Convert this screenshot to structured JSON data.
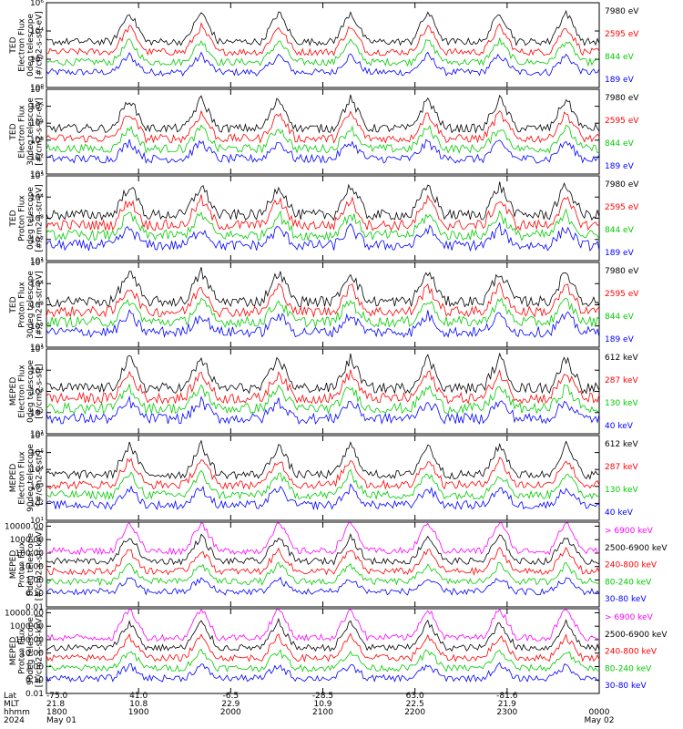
{
  "chart_data": {
    "type": "line",
    "x_axis": {
      "row_labels": [
        "Lat",
        "MLT",
        "hhmm",
        "2024"
      ],
      "ticks": [
        {
          "lat": "-75.0",
          "mlt": "21.8",
          "hhmm": "1800",
          "date": "May 01"
        },
        {
          "lat": "41.0",
          "mlt": "10.8",
          "hhmm": "1900",
          "date": ""
        },
        {
          "lat": "-6.5",
          "mlt": "22.9",
          "hhmm": "2000",
          "date": ""
        },
        {
          "lat": "-28.5",
          "mlt": "10.9",
          "hhmm": "2100",
          "date": ""
        },
        {
          "lat": "63.0",
          "mlt": "22.5",
          "hhmm": "2200",
          "date": ""
        },
        {
          "lat": "-81.6",
          "mlt": "21.9",
          "hhmm": "2300",
          "date": ""
        },
        {
          "lat": "",
          "mlt": "",
          "hhmm": "0000",
          "date": "May 02"
        }
      ]
    },
    "panels": [
      {
        "ylabel": [
          "TED",
          "Electron Flux",
          "0deg telescope",
          "[#/cm2-s-str-eV]"
        ],
        "y_ticks": [
          {
            "e": 0,
            "t": "10⁰"
          },
          {
            "e": 2,
            "t": "10²"
          },
          {
            "e": 4,
            "t": "10⁴"
          },
          {
            "e": 6,
            "t": "10⁶"
          }
        ],
        "ylim_log": [
          0,
          6
        ],
        "legend": [
          "7980 eV",
          "2595 eV",
          "844 eV",
          "189 eV"
        ],
        "colors": [
          "#000000",
          "#ff0000",
          "#00cc00",
          "#0000ff"
        ]
      },
      {
        "ylabel": [
          "TED",
          "Electron Flux",
          "30deg telescope",
          "[#/cm2-s-str-eV]"
        ],
        "y_ticks": [
          {
            "e": 1,
            "t": "10¹"
          },
          {
            "e": 2,
            "t": "10²"
          },
          {
            "e": 3,
            "t": "10³"
          },
          {
            "e": 4,
            "t": "10⁴"
          },
          {
            "e": 5,
            "t": "10⁵"
          },
          {
            "e": 6,
            "t": "10⁶"
          }
        ],
        "ylim_log": [
          1,
          6
        ],
        "legend": [
          "7980 eV",
          "2595 eV",
          "844 eV",
          "189 eV"
        ],
        "colors": [
          "#000000",
          "#ff0000",
          "#00cc00",
          "#0000ff"
        ]
      },
      {
        "ylabel": [
          "TED",
          "Proton Flux",
          "0deg telescope",
          "[#/cm2-s-str-eV]"
        ],
        "y_ticks": [
          {
            "e": 1,
            "t": "10¹"
          },
          {
            "e": 2,
            "t": "10²"
          },
          {
            "e": 3,
            "t": "10³"
          },
          {
            "e": 4,
            "t": "10⁴"
          },
          {
            "e": 5,
            "t": "10⁵"
          }
        ],
        "ylim_log": [
          1,
          5
        ],
        "legend": [
          "7980 eV",
          "2595 eV",
          "844 eV",
          "189 eV"
        ],
        "colors": [
          "#000000",
          "#ff0000",
          "#00cc00",
          "#0000ff"
        ]
      },
      {
        "ylabel": [
          "TED",
          "Proton Flux",
          "30deg telescope",
          "[#/cm2-s-str-eV]"
        ],
        "y_ticks": [
          {
            "e": 1,
            "t": "10¹"
          },
          {
            "e": 2,
            "t": "10²"
          },
          {
            "e": 3,
            "t": "10³"
          },
          {
            "e": 4,
            "t": "10⁴"
          },
          {
            "e": 5,
            "t": "10⁵"
          }
        ],
        "ylim_log": [
          1,
          5
        ],
        "legend": [
          "7980 eV",
          "2595 eV",
          "844 eV",
          "189 eV"
        ],
        "colors": [
          "#000000",
          "#ff0000",
          "#00cc00",
          "#0000ff"
        ]
      },
      {
        "ylabel": [
          "MEPED",
          "Electron Flux",
          "0deg telescope",
          "[#/cm2-s-str]"
        ],
        "y_ticks": [
          {
            "e": 1,
            "t": "10¹"
          },
          {
            "e": 2,
            "t": "10²"
          },
          {
            "e": 3,
            "t": "10³"
          },
          {
            "e": 4,
            "t": "10⁴"
          },
          {
            "e": 5,
            "t": "10⁵"
          }
        ],
        "ylim_log": [
          1,
          5
        ],
        "legend": [
          "612 keV",
          "287 keV",
          "130 keV",
          "40 keV"
        ],
        "colors": [
          "#000000",
          "#ff0000",
          "#00cc00",
          "#0000ff"
        ]
      },
      {
        "ylabel": [
          "MEPED",
          "Electron Flux",
          "90deg telescope",
          "[#/cm2-s-str]"
        ],
        "y_ticks": [
          {
            "e": 1,
            "t": "10¹"
          },
          {
            "e": 2,
            "t": "10²"
          },
          {
            "e": 3,
            "t": "10³"
          },
          {
            "e": 4,
            "t": "10⁴"
          },
          {
            "e": 5,
            "t": "10⁵"
          },
          {
            "e": 6,
            "t": "10⁶"
          }
        ],
        "ylim_log": [
          1,
          6
        ],
        "legend": [
          "612 keV",
          "287 keV",
          "130 keV",
          "40 keV"
        ],
        "colors": [
          "#000000",
          "#ff0000",
          "#00cc00",
          "#0000ff"
        ]
      },
      {
        "ylabel": [
          "MEPED",
          "Proton Flux",
          "0deg telescope",
          "[#/cm2-s-str-keV]"
        ],
        "y_ticks": [
          {
            "e": -2,
            "t": "0.01"
          },
          {
            "e": -1,
            "t": "0.10"
          },
          {
            "e": 0,
            "t": "1.00"
          },
          {
            "e": 1,
            "t": "10.00"
          },
          {
            "e": 2,
            "t": "100.00"
          },
          {
            "e": 3,
            "t": "1000.00"
          },
          {
            "e": 4,
            "t": "10000.00"
          }
        ],
        "ylim_log": [
          -2,
          4.3
        ],
        "legend": [
          "> 6900 keV",
          "2500-6900 keV",
          "240-800 keV",
          "80-240 keV",
          "30-80 keV"
        ],
        "colors": [
          "#ff00ff",
          "#000000",
          "#ff0000",
          "#00cc00",
          "#0000ff"
        ]
      },
      {
        "ylabel": [
          "MEPED",
          "Proton Flux",
          "90deg telescope",
          "[#/cm2-s-str-keV]"
        ],
        "y_ticks": [
          {
            "e": -2,
            "t": "0.01"
          },
          {
            "e": -1,
            "t": "0.10"
          },
          {
            "e": 0,
            "t": "1.00"
          },
          {
            "e": 1,
            "t": "10.00"
          },
          {
            "e": 2,
            "t": "100.00"
          },
          {
            "e": 3,
            "t": "1000.00"
          },
          {
            "e": 4,
            "t": "10000.00"
          }
        ],
        "ylim_log": [
          -2,
          4.3
        ],
        "legend": [
          "> 6900 keV",
          "2500-6900 keV",
          "240-800 keV",
          "80-240 keV",
          "30-80 keV"
        ],
        "colors": [
          "#ff00ff",
          "#000000",
          "#ff0000",
          "#00cc00",
          "#0000ff"
        ]
      }
    ]
  }
}
